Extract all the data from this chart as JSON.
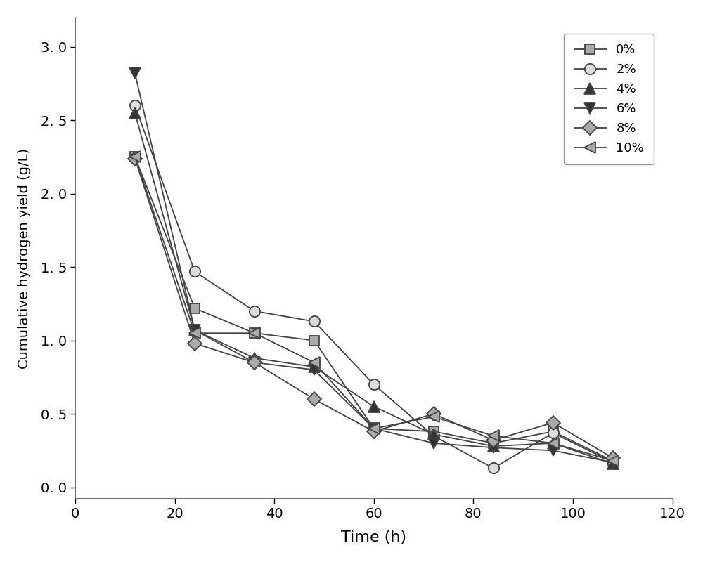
{
  "series": {
    "0%": {
      "x": [
        12,
        24,
        36,
        48,
        60,
        72,
        84,
        96,
        108
      ],
      "y": [
        2.25,
        1.22,
        1.05,
        1.0,
        0.4,
        0.38,
        0.3,
        0.38,
        0.18
      ]
    },
    "2%": {
      "x": [
        12,
        24,
        36,
        48,
        60,
        72,
        84,
        96,
        108
      ],
      "y": [
        2.6,
        1.47,
        1.2,
        1.13,
        0.7,
        0.35,
        0.13,
        0.37,
        0.17
      ]
    },
    "4%": {
      "x": [
        12,
        24,
        36,
        48,
        60,
        72,
        84,
        96,
        108
      ],
      "y": [
        2.55,
        1.07,
        0.88,
        0.82,
        0.55,
        0.36,
        0.28,
        0.3,
        0.16
      ]
    },
    "6%": {
      "x": [
        12,
        24,
        36,
        48,
        60,
        72,
        84,
        96,
        108
      ],
      "y": [
        2.82,
        1.07,
        0.85,
        0.8,
        0.4,
        0.3,
        0.27,
        0.25,
        0.17
      ]
    },
    "8%": {
      "x": [
        12,
        24,
        36,
        48,
        60,
        72,
        84,
        96,
        108
      ],
      "y": [
        2.24,
        0.98,
        0.85,
        0.6,
        0.38,
        0.5,
        0.32,
        0.44,
        0.2
      ]
    },
    "10%": {
      "x": [
        12,
        24,
        36,
        48,
        60,
        72,
        84,
        96,
        108
      ],
      "y": [
        2.25,
        1.05,
        1.05,
        0.85,
        0.4,
        0.48,
        0.35,
        0.3,
        0.18
      ]
    }
  },
  "xlabel": "Time (h)",
  "ylabel": "Cumulative hydrogen yield (g/L)",
  "xlim": [
    0,
    120
  ],
  "ylim": [
    -0.08,
    3.2
  ],
  "xticks": [
    0,
    20,
    40,
    60,
    80,
    100,
    120
  ],
  "yticks": [
    0.0,
    0.5,
    1.0,
    1.5,
    2.0,
    2.5,
    3.0
  ],
  "ytick_labels": [
    "0. 0",
    "0. 5",
    "1. 0",
    "1. 5",
    "2. 0",
    "2. 5",
    "3. 0"
  ],
  "line_color": "#444444",
  "linewidth": 1.3,
  "series_order": [
    "0%",
    "2%",
    "4%",
    "6%",
    "8%",
    "10%"
  ],
  "markers": [
    "s",
    "o",
    "^",
    "v",
    "D",
    "<"
  ],
  "markerfacecolors": [
    "#aaaaaa",
    "#dddddd",
    "#333333",
    "#333333",
    "#aaaaaa",
    "#aaaaaa"
  ],
  "markersizes": [
    10,
    11,
    11,
    11,
    10,
    11
  ],
  "legend_labels": [
    "0%",
    "2%",
    "4%",
    "6%",
    "8%",
    "10%"
  ]
}
